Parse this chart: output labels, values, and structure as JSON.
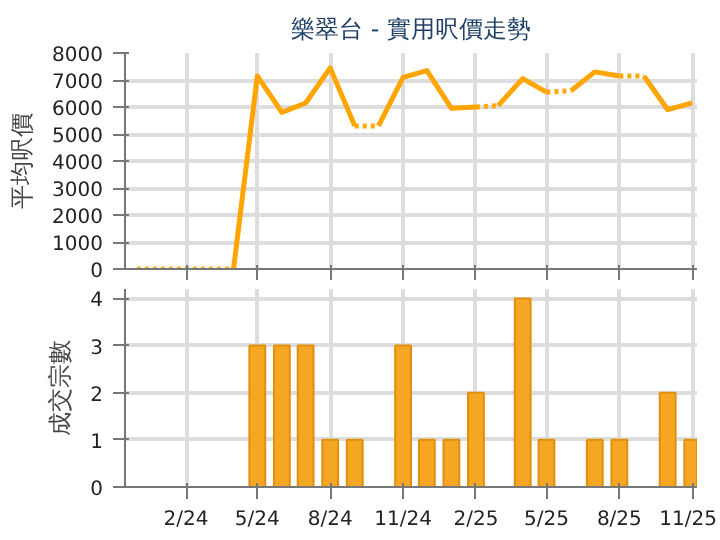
{
  "chart_data": [
    {
      "type": "line",
      "title": "樂翠台 - 實用呎價走勢",
      "ylabel": "平均呎價",
      "xlim": [
        "2023-11-16",
        "2025-11-07"
      ],
      "ylim": [
        0,
        8000
      ],
      "yticks": [
        0,
        1000,
        2000,
        3000,
        4000,
        5000,
        6000,
        7000,
        8000
      ],
      "xticks": [
        {
          "value": "2024-02",
          "label": null
        },
        {
          "value": "2024-05",
          "label": null
        },
        {
          "value": "2024-08",
          "label": null
        },
        {
          "value": "2024-11",
          "label": null
        },
        {
          "value": "2025-02",
          "label": null
        },
        {
          "value": "2025-05",
          "label": null
        },
        {
          "value": "2025-08",
          "label": null
        },
        {
          "value": "2025-11",
          "label": null
        }
      ],
      "tick_labels": "y",
      "grid": true,
      "marker": "none",
      "series": [
        {
          "color": "#ffa90a",
          "line_style": "dotted",
          "x": [
            "2023-12",
            "2024-01",
            "2024-02",
            "2024-03",
            "2024-04",
            "2024-05",
            "2024-06",
            "2024-07",
            "2024-08",
            "2024-09",
            "2024-10",
            "2024-11",
            "2024-12",
            "2025-01",
            "2025-02",
            "2025-03",
            "2025-04",
            "2025-05",
            "2025-06",
            "2025-07",
            "2025-08",
            "2025-09"
          ],
          "values": [
            0,
            0,
            0,
            0,
            0,
            null,
            null,
            null,
            null,
            5300,
            5300,
            null,
            null,
            null,
            6000,
            6050,
            null,
            6550,
            6600,
            null,
            7150,
            7150
          ]
        },
        {
          "color": "#ffa500",
          "line_style": "solid",
          "x": [
            "2024-04",
            "2024-05",
            "2024-06",
            "2024-07",
            "2024-08",
            "2024-09"
          ],
          "values": [
            0,
            7150,
            5800,
            6150,
            7450,
            5300
          ]
        },
        {
          "color": "#ffa502",
          "line_style": "solid",
          "x": [
            "2024-10",
            "2024-11",
            "2024-12",
            "2025-01",
            "2025-02"
          ],
          "values": [
            5300,
            7100,
            7350,
            5950,
            6000
          ]
        },
        {
          "color": "#ffa504",
          "line_style": "solid",
          "x": [
            "2025-03",
            "2025-04",
            "2025-05"
          ],
          "values": [
            6050,
            7050,
            6550
          ]
        },
        {
          "color": "#ffa506",
          "line_style": "solid",
          "x": [
            "2025-06",
            "2025-07",
            "2025-08"
          ],
          "values": [
            6600,
            7300,
            7150
          ]
        },
        {
          "color": "#ffa508",
          "line_style": "solid",
          "x": [
            "2025-09",
            "2025-10",
            "2025-11"
          ],
          "values": [
            7150,
            5900,
            6150
          ]
        }
      ]
    },
    {
      "type": "bar",
      "ylabel": "成交宗數",
      "xlim": [
        "2023-11-16",
        "2025-11-07"
      ],
      "ylim": [
        0,
        4.2
      ],
      "yticks": [
        0,
        1,
        2,
        3,
        4
      ],
      "xticks": [
        {
          "value": "2024-02",
          "label": "2/24"
        },
        {
          "value": "2024-05",
          "label": "5/24"
        },
        {
          "value": "2024-08",
          "label": "8/24"
        },
        {
          "value": "2024-11",
          "label": "11/24"
        },
        {
          "value": "2025-02",
          "label": "2/25"
        },
        {
          "value": "2025-05",
          "label": "5/25"
        },
        {
          "value": "2025-08",
          "label": "8/25"
        },
        {
          "value": "2025-11",
          "label": "11/25"
        }
      ],
      "grid": true,
      "x": [
        "2024-05",
        "2024-06",
        "2024-07",
        "2024-08",
        "2024-09",
        "2024-11",
        "2024-12",
        "2025-01",
        "2025-02",
        "2025-04",
        "2025-05",
        "2025-07",
        "2025-08",
        "2025-10",
        "2025-11"
      ],
      "series": [
        {
          "color": "#f5a623",
          "values": [
            3,
            3,
            3,
            1,
            1,
            3,
            1,
            1,
            2,
            4,
            1,
            1,
            1,
            2,
            1
          ]
        }
      ]
    }
  ]
}
